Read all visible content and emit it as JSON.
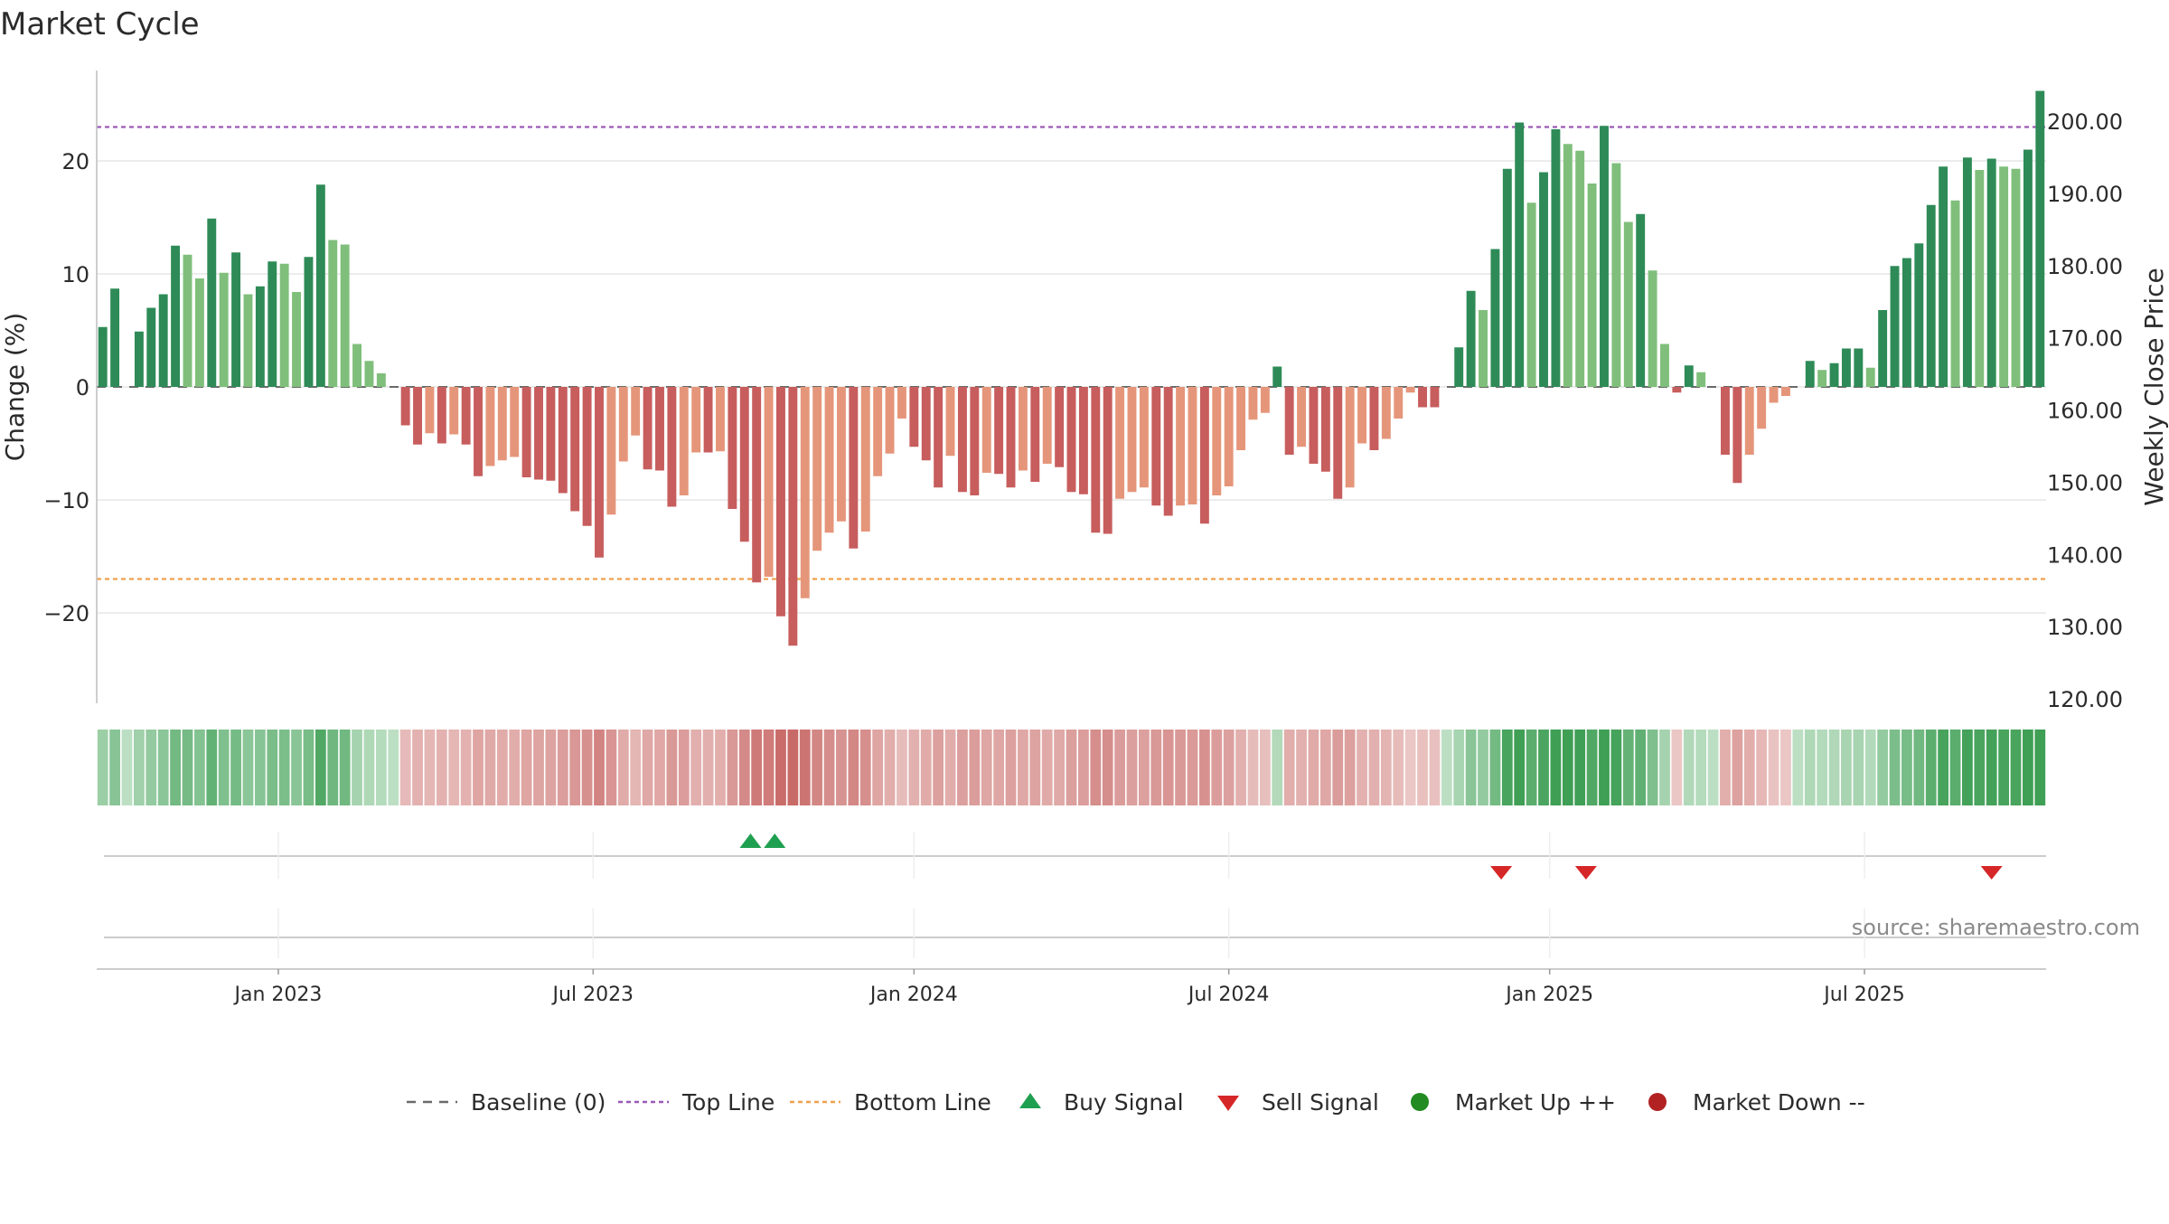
{
  "chart_data": {
    "type": "bar",
    "title": "Market Cycle",
    "ylabel": "Change (%)",
    "y2label": "Weekly Close Price",
    "ylim": [
      -28,
      28
    ],
    "y2lim": [
      120,
      205
    ],
    "yticks": [
      -20,
      -10,
      0,
      10,
      20
    ],
    "yticklabels": [
      "−20",
      "−10",
      "0",
      "10",
      "20"
    ],
    "y2ticks": [
      120,
      130,
      140,
      150,
      160,
      170,
      180,
      190,
      200
    ],
    "y2ticklabels": [
      "120.00",
      "130.00",
      "140.00",
      "150.00",
      "160.00",
      "170.00",
      "180.00",
      "190.00",
      "200.00"
    ],
    "top_line": 23,
    "bottom_line": -17,
    "grid": true,
    "xticklabels": [
      "Jan 2023",
      "Jul 2023",
      "Jan 2024",
      "Jul 2024",
      "Jan 2025",
      "Jul 2025"
    ],
    "xtick_weeks": [
      14.5,
      40.5,
      67,
      93,
      119.5,
      145.5
    ],
    "change_values": [
      5.3,
      8.7,
      0,
      4.9,
      7.0,
      8.2,
      12.5,
      11.7,
      9.6,
      14.9,
      10.1,
      11.9,
      8.2,
      8.9,
      11.1,
      10.9,
      8.4,
      11.5,
      17.9,
      13.0,
      12.6,
      3.8,
      2.3,
      1.2,
      0,
      -3.4,
      -5.1,
      -4.1,
      -5.0,
      -4.2,
      -5.1,
      -7.9,
      -7.0,
      -6.5,
      -6.2,
      -8.0,
      -8.2,
      -8.3,
      -9.4,
      -11.0,
      -12.3,
      -15.1,
      -11.3,
      -6.6,
      -4.3,
      -7.3,
      -7.4,
      -10.6,
      -9.6,
      -5.8,
      -5.8,
      -5.7,
      -10.8,
      -13.7,
      -17.3,
      -16.8,
      -20.3,
      -22.9,
      -18.7,
      -14.5,
      -12.9,
      -11.9,
      -14.3,
      -12.8,
      -7.9,
      -5.9,
      -2.8,
      -5.3,
      -6.5,
      -8.9,
      -6.1,
      -9.3,
      -9.6,
      -7.6,
      -7.7,
      -8.9,
      -7.4,
      -8.4,
      -6.8,
      -7.1,
      -9.3,
      -9.5,
      -12.9,
      -13.0,
      -9.9,
      -9.3,
      -8.9,
      -10.5,
      -11.4,
      -10.5,
      -10.4,
      -12.1,
      -9.6,
      -8.8,
      -5.6,
      -2.9,
      -2.3,
      1.8,
      -6.0,
      -5.3,
      -6.8,
      -7.5,
      -9.9,
      -8.9,
      -5.0,
      -5.6,
      -4.6,
      -2.8,
      -0.5,
      -1.8,
      -1.8,
      0,
      3.5,
      8.5,
      6.8,
      12.2,
      19.3,
      23.4,
      16.3,
      19.0,
      22.8,
      21.5,
      20.9,
      18.0,
      23.1,
      19.8,
      14.6,
      15.3,
      10.3,
      3.8,
      -0.5,
      1.9,
      1.3,
      0,
      -6.0,
      -8.5,
      -6.0,
      -3.7,
      -1.4,
      -0.8,
      0,
      2.3,
      1.5,
      2.1,
      3.4,
      3.4,
      1.7,
      6.8,
      10.7,
      11.4,
      12.7,
      16.1,
      19.5,
      16.5,
      20.3,
      19.2,
      20.2,
      19.5,
      19.3,
      21.0,
      26.2
    ],
    "heat_strip": true,
    "buy_signal_weeks": [
      53.5,
      55.5
    ],
    "sell_signal_weeks": [
      115.5,
      122.5,
      156
    ],
    "colors": {
      "strong_up": "#2e8b57",
      "weak_up": "#7fbf7b",
      "strong_down": "#c75d5d",
      "weak_down": "#e5967a",
      "top_line": "#9b59b6",
      "bottom_line": "#f0a04b",
      "buy_signal": "#1fa050",
      "sell_signal": "#d62728",
      "market_up": "#228b22",
      "market_down": "#b22222",
      "baseline": "#6a6a6a"
    },
    "legend_position": "bottom-center",
    "legend": [
      "Baseline (0)",
      "Top Line",
      "Bottom Line",
      "Buy Signal",
      "Sell Signal",
      "Market Up ++",
      "Market Down --"
    ]
  },
  "source_text": "source: sharemaestro.com"
}
